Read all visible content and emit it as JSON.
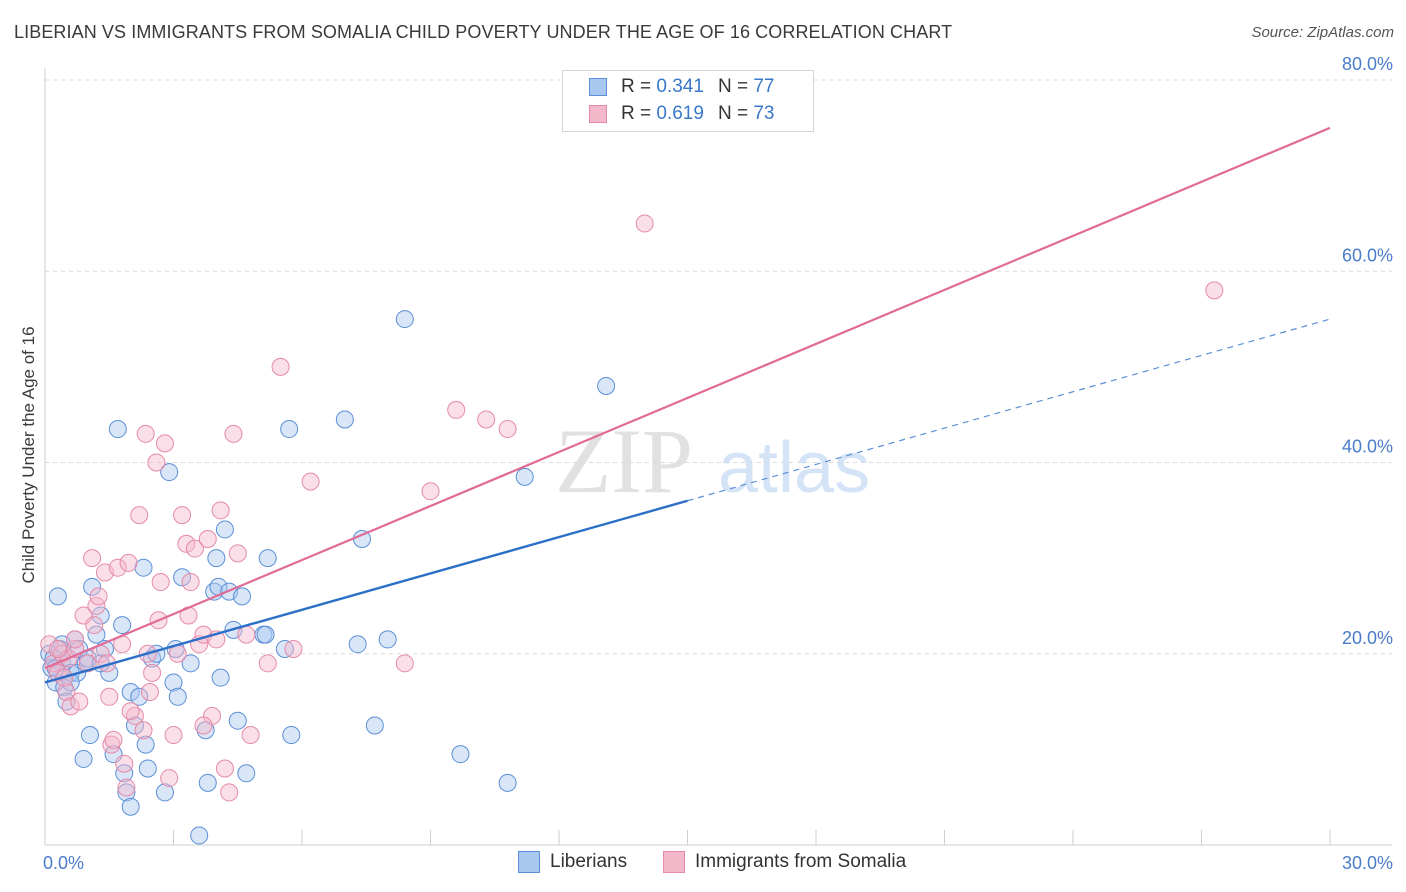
{
  "title": "LIBERIAN VS IMMIGRANTS FROM SOMALIA CHILD POVERTY UNDER THE AGE OF 16 CORRELATION CHART",
  "source": "Source: ZipAtlas.com",
  "colors": {
    "blue_fill": "#a8c8f0",
    "blue_stroke": "#5b8fd6",
    "blue_line": "#2c6fc8",
    "pink_fill": "#f5b8cb",
    "pink_stroke": "#e58aa8",
    "pink_line": "#e06b97",
    "tick_text": "#4a7cc9",
    "grid": "#dcdcdc"
  },
  "legend_top": {
    "liberians": {
      "r_label": "R =",
      "r_value": "0.341",
      "n_label": "N =",
      "n_value": "77"
    },
    "somalia": {
      "r_label": "R =",
      "r_value": "0.619",
      "n_label": "N =",
      "n_value": "73"
    }
  },
  "legend_bottom": {
    "liberians": "Liberians",
    "somalia": "Immigrants from Somalia"
  },
  "chart_data": {
    "type": "scatter",
    "title": "LIBERIAN VS IMMIGRANTS FROM SOMALIA CHILD POVERTY UNDER THE AGE OF 16 CORRELATION CHART",
    "xlabel": "",
    "ylabel": "Child Poverty Under the Age of 16",
    "xlim": [
      0,
      30
    ],
    "ylim": [
      0,
      80
    ],
    "x_tick_labels": [
      "0.0%",
      "30.0%"
    ],
    "y_ticks": [
      20,
      40,
      60,
      80
    ],
    "y_tick_labels": [
      "20.0%",
      "40.0%",
      "60.0%",
      "80.0%"
    ],
    "watermark": {
      "zip": "ZIP",
      "atlas": "atlas"
    },
    "series": [
      {
        "name": "Liberians",
        "R": 0.341,
        "N": 77,
        "trend": {
          "x0": 0,
          "y0": 17.0,
          "x1": 15,
          "y1": 36.0,
          "dash_x1": 30,
          "dash_y1": 55.0
        },
        "points": [
          [
            0.1,
            20.0
          ],
          [
            0.15,
            18.5
          ],
          [
            0.2,
            19.5
          ],
          [
            0.25,
            17.0
          ],
          [
            0.3,
            26.0
          ],
          [
            0.35,
            20.5
          ],
          [
            0.4,
            19.0
          ],
          [
            0.45,
            16.5
          ],
          [
            0.5,
            15.0
          ],
          [
            0.55,
            19.5
          ],
          [
            0.6,
            18.0
          ],
          [
            0.7,
            21.5
          ],
          [
            0.75,
            18.0
          ],
          [
            0.8,
            20.5
          ],
          [
            0.9,
            9.0
          ],
          [
            0.95,
            19.0
          ],
          [
            1.0,
            19.5
          ],
          [
            1.05,
            11.5
          ],
          [
            1.1,
            27.0
          ],
          [
            1.2,
            22.0
          ],
          [
            1.3,
            24.0
          ],
          [
            1.4,
            20.5
          ],
          [
            1.5,
            18.0
          ],
          [
            1.6,
            9.5
          ],
          [
            1.7,
            43.5
          ],
          [
            1.8,
            23.0
          ],
          [
            1.85,
            7.5
          ],
          [
            1.9,
            5.5
          ],
          [
            2.0,
            4.0
          ],
          [
            2.0,
            16.0
          ],
          [
            2.1,
            12.5
          ],
          [
            2.2,
            15.5
          ],
          [
            2.3,
            29.0
          ],
          [
            2.35,
            10.5
          ],
          [
            2.4,
            8.0
          ],
          [
            2.5,
            19.5
          ],
          [
            2.8,
            5.5
          ],
          [
            2.9,
            39.0
          ],
          [
            3.0,
            17.0
          ],
          [
            3.05,
            20.5
          ],
          [
            3.1,
            15.5
          ],
          [
            3.2,
            28.0
          ],
          [
            3.4,
            19.0
          ],
          [
            3.6,
            1.0
          ],
          [
            3.75,
            12.0
          ],
          [
            3.8,
            6.5
          ],
          [
            3.95,
            26.5
          ],
          [
            4.0,
            30.0
          ],
          [
            4.05,
            27.0
          ],
          [
            4.1,
            17.5
          ],
          [
            4.2,
            33.0
          ],
          [
            4.3,
            26.5
          ],
          [
            4.4,
            22.5
          ],
          [
            4.5,
            13.0
          ],
          [
            4.6,
            26.0
          ],
          [
            4.7,
            7.5
          ],
          [
            5.1,
            22.0
          ],
          [
            5.15,
            22.0
          ],
          [
            5.2,
            30.0
          ],
          [
            5.6,
            20.5
          ],
          [
            5.7,
            43.5
          ],
          [
            5.75,
            11.5
          ],
          [
            7.0,
            44.5
          ],
          [
            7.3,
            21.0
          ],
          [
            7.4,
            32.0
          ],
          [
            7.7,
            12.5
          ],
          [
            8.0,
            21.5
          ],
          [
            8.4,
            55.0
          ],
          [
            9.7,
            9.5
          ],
          [
            10.8,
            6.5
          ],
          [
            11.2,
            38.5
          ],
          [
            13.1,
            48.0
          ],
          [
            0.25,
            18.5
          ],
          [
            0.6,
            17.0
          ],
          [
            1.3,
            19.0
          ],
          [
            2.6,
            20.0
          ],
          [
            0.4,
            21.0
          ]
        ]
      },
      {
        "name": "Immigrants from Somalia",
        "R": 0.619,
        "N": 73,
        "trend": {
          "x0": 0,
          "y0": 18.5,
          "x1": 30,
          "y1": 75.0
        },
        "points": [
          [
            0.1,
            21.0
          ],
          [
            0.2,
            19.0
          ],
          [
            0.3,
            18.0
          ],
          [
            0.4,
            20.0
          ],
          [
            0.5,
            16.0
          ],
          [
            0.55,
            19.5
          ],
          [
            0.6,
            14.5
          ],
          [
            0.7,
            20.5
          ],
          [
            0.8,
            15.0
          ],
          [
            0.9,
            24.0
          ],
          [
            1.0,
            19.0
          ],
          [
            1.1,
            30.0
          ],
          [
            1.2,
            25.0
          ],
          [
            1.25,
            26.0
          ],
          [
            1.3,
            20.0
          ],
          [
            1.4,
            28.5
          ],
          [
            1.5,
            15.5
          ],
          [
            1.55,
            10.5
          ],
          [
            1.6,
            11.0
          ],
          [
            1.7,
            29.0
          ],
          [
            1.8,
            21.0
          ],
          [
            1.85,
            8.5
          ],
          [
            1.9,
            6.0
          ],
          [
            1.95,
            29.5
          ],
          [
            2.1,
            13.5
          ],
          [
            2.2,
            34.5
          ],
          [
            2.3,
            12.0
          ],
          [
            2.35,
            43.0
          ],
          [
            2.4,
            20.0
          ],
          [
            2.5,
            18.0
          ],
          [
            2.6,
            40.0
          ],
          [
            2.65,
            23.5
          ],
          [
            2.7,
            27.5
          ],
          [
            2.8,
            42.0
          ],
          [
            2.9,
            7.0
          ],
          [
            3.0,
            11.5
          ],
          [
            3.1,
            20.0
          ],
          [
            3.2,
            34.5
          ],
          [
            3.3,
            31.5
          ],
          [
            3.35,
            24.0
          ],
          [
            3.4,
            27.5
          ],
          [
            3.5,
            31.0
          ],
          [
            3.6,
            21.0
          ],
          [
            3.7,
            22.0
          ],
          [
            3.8,
            32.0
          ],
          [
            3.9,
            13.5
          ],
          [
            4.0,
            21.5
          ],
          [
            4.1,
            35.0
          ],
          [
            4.2,
            8.0
          ],
          [
            4.3,
            5.5
          ],
          [
            4.4,
            43.0
          ],
          [
            4.5,
            30.5
          ],
          [
            4.7,
            22.0
          ],
          [
            4.8,
            11.5
          ],
          [
            5.2,
            19.0
          ],
          [
            5.5,
            50.0
          ],
          [
            5.8,
            20.5
          ],
          [
            6.2,
            38.0
          ],
          [
            8.4,
            19.0
          ],
          [
            9.0,
            37.0
          ],
          [
            9.6,
            45.5
          ],
          [
            10.3,
            44.5
          ],
          [
            10.8,
            43.5
          ],
          [
            14.0,
            65.0
          ],
          [
            27.3,
            58.0
          ],
          [
            0.3,
            20.5
          ],
          [
            0.7,
            21.5
          ],
          [
            1.15,
            23.0
          ],
          [
            2.0,
            14.0
          ],
          [
            3.7,
            12.5
          ],
          [
            0.45,
            17.5
          ],
          [
            1.45,
            19.0
          ],
          [
            2.45,
            16.0
          ]
        ]
      }
    ]
  }
}
